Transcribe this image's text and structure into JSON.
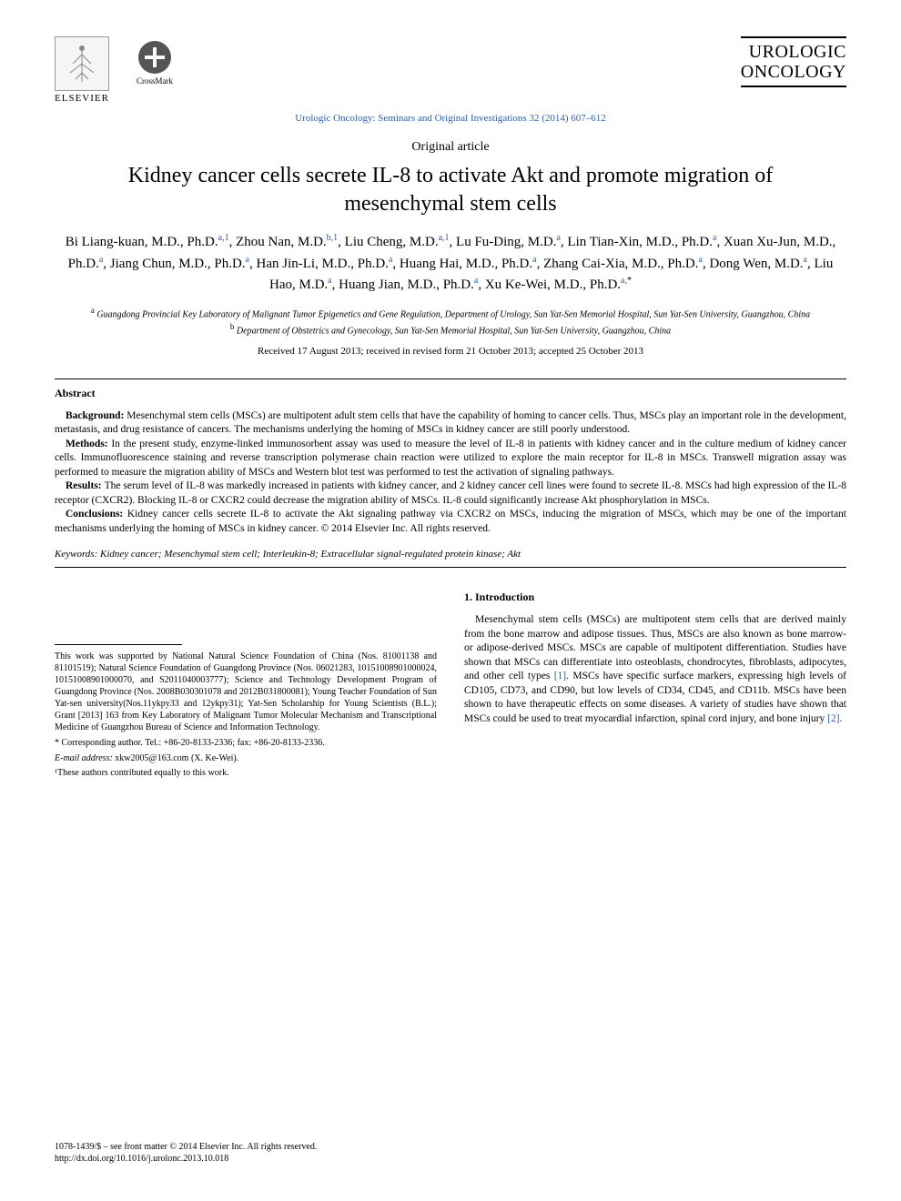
{
  "header": {
    "publisher_name": "ELSEVIER",
    "crossmark_label": "CrossMark",
    "journal_logo_line1": "UROLOGIC",
    "journal_logo_line2": "ONCOLOGY",
    "journal_reference": "Urologic Oncology: Seminars and Original Investigations 32 (2014) 607–612"
  },
  "article": {
    "type": "Original article",
    "title": "Kidney cancer cells secrete IL-8 to activate Akt and promote migration of mesenchymal stem cells",
    "authors_html": "Bi Liang-kuan, M.D., Ph.D.<sup>a,1</sup>, Zhou Nan, M.D.<sup>b,1</sup>, Liu Cheng, M.D.<sup>a,1</sup>, Lu Fu-Ding, M.D.<sup>a</sup>, Lin Tian-Xin, M.D., Ph.D.<sup>a</sup>, Xuan Xu-Jun, M.D., Ph.D.<sup>a</sup>, Jiang Chun, M.D., Ph.D.<sup>a</sup>, Han Jin-Li, M.D., Ph.D.<sup>a</sup>, Huang Hai, M.D., Ph.D.<sup>a</sup>, Zhang Cai-Xia, M.D., Ph.D.<sup>a</sup>, Dong Wen, M.D.<sup>a</sup>, Liu Hao, M.D.<sup>a</sup>, Huang Jian, M.D., Ph.D.<sup>a</sup>, Xu Ke-Wei, M.D., Ph.D.<sup>a,</sup><sup class=\"black\">*</sup>",
    "affiliations": [
      {
        "marker": "a",
        "text": "Guangdong Provincial Key Laboratory of Malignant Tumor Epigenetics and Gene Regulation, Department of Urology, Sun Yat-Sen Memorial Hospital, Sun Yat-Sen University, Guangzhou, China"
      },
      {
        "marker": "b",
        "text": "Department of Obstetrics and Gynecology, Sun Yat-Sen Memorial Hospital, Sun Yat-Sen University, Guangzhou, China"
      }
    ],
    "dates": "Received 17 August 2013; received in revised form 21 October 2013; accepted 25 October 2013"
  },
  "abstract": {
    "heading": "Abstract",
    "sections": [
      {
        "label": "Background:",
        "text": "Mesenchymal stem cells (MSCs) are multipotent adult stem cells that have the capability of homing to cancer cells. Thus, MSCs play an important role in the development, metastasis, and drug resistance of cancers. The mechanisms underlying the homing of MSCs in kidney cancer are still poorly understood."
      },
      {
        "label": "Methods:",
        "text": "In the present study, enzyme-linked immunosorbent assay was used to measure the level of IL-8 in patients with kidney cancer and in the culture medium of kidney cancer cells. Immunofluorescence staining and reverse transcription polymerase chain reaction were utilized to explore the main receptor for IL-8 in MSCs. Transwell migration assay was performed to measure the migration ability of MSCs and Western blot test was performed to test the activation of signaling pathways."
      },
      {
        "label": "Results:",
        "text": "The serum level of IL-8 was markedly increased in patients with kidney cancer, and 2 kidney cancer cell lines were found to secrete IL-8. MSCs had high expression of the IL-8 receptor (CXCR2). Blocking IL-8 or CXCR2 could decrease the migration ability of MSCs. IL-8 could significantly increase Akt phosphorylation in MSCs."
      },
      {
        "label": "Conclusions:",
        "text": "Kidney cancer cells secrete IL-8 to activate the Akt signaling pathway via CXCR2 on MSCs, inducing the migration of MSCs, which may be one of the important mechanisms underlying the homing of MSCs in kidney cancer.   © 2014 Elsevier Inc. All rights reserved."
      }
    ],
    "keywords_label": "Keywords:",
    "keywords": "Kidney cancer; Mesenchymal stem cell; Interleukin-8; Extracellular signal-regulated protein kinase; Akt"
  },
  "funding": {
    "text": "This work was supported by National Natural Science Foundation of China (Nos. 81001138 and 81101519); Natural Science Foundation of Guangdong Province (Nos. 06021283, 10151008901000024, 10151008901000070, and S2011040003777); Science and Technology Development Program of Guangdong Province (Nos. 2008B030301078 and 2012B031800081); Young Teacher Foundation of Sun Yat-sen university(Nos.11ykpy33 and 12ykpy31); Yat-Sen Scholarship for Young Scientists (B.L.); Grant [2013] 163 from Key Laboratory of Malignant Tumor Molecular Mechanism and Transcriptional Medicine of Guangzhou Bureau of Science and Information Technology."
  },
  "corresponding": {
    "label": "* Corresponding author.",
    "contact": "Tel.: +86-20-8133-2336; fax: +86-20-8133-2336.",
    "email_label": "E-mail address:",
    "email": "xkw2005@163.com",
    "email_name": "(X. Ke-Wei).",
    "equal": "¹These authors contributed equally to this work."
  },
  "introduction": {
    "heading": "1. Introduction",
    "paragraph": "Mesenchymal stem cells (MSCs) are multipotent stem cells that are derived mainly from the bone marrow and adipose tissues. Thus, MSCs are also known as bone marrow- or adipose-derived MSCs. MSCs are capable of multipotent differentiation. Studies have shown that MSCs can differentiate into osteoblasts, chondrocytes, fibroblasts, adipocytes, and other cell types ",
    "ref1": "[1]",
    "paragraph2": ". MSCs have specific surface markers, expressing high levels of CD105, CD73, and CD90, but low levels of CD34, CD45, and CD11b. MSCs have been shown to have therapeutic effects on some diseases. A variety of studies have shown that MSCs could be used to treat myocardial infarction, spinal cord injury, and bone injury ",
    "ref2": "[2]",
    "paragraph3": "."
  },
  "footer": {
    "line1": "1078-1439/$ – see front matter © 2014 Elsevier Inc. All rights reserved.",
    "line2": "http://dx.doi.org/10.1016/j.urolonc.2013.10.018"
  },
  "colors": {
    "link": "#2a5db0",
    "text": "#000000",
    "background": "#ffffff"
  }
}
